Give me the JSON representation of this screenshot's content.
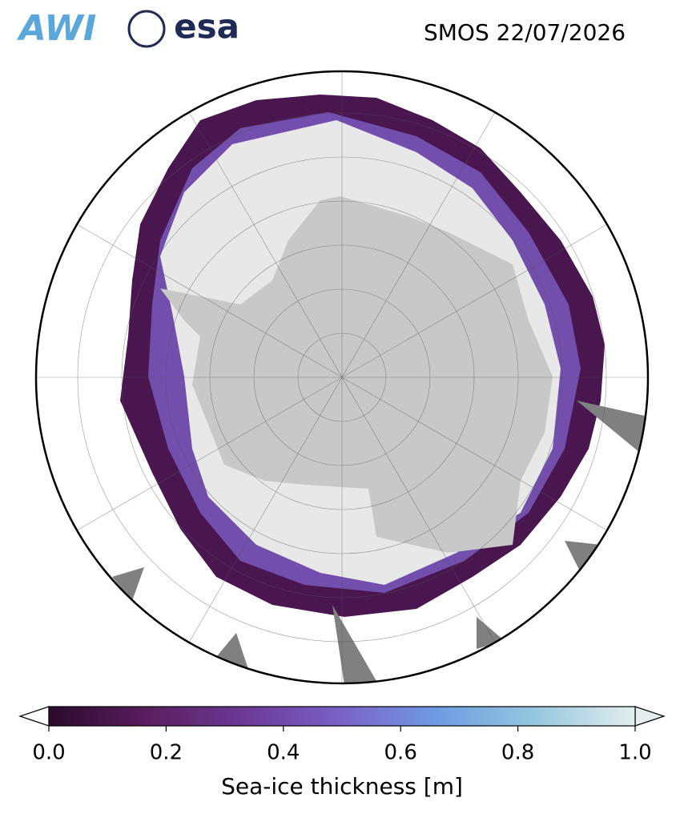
{
  "header": {
    "logos": [
      "AWI",
      "esa"
    ],
    "title": "SMOS 22/07/2026"
  },
  "colorbar": {
    "label": "Sea-ice thickness [m]",
    "lim": [
      0,
      1
    ],
    "ticks": [
      {
        "value": 0,
        "label": "0.0"
      },
      {
        "value": 0.2,
        "label": "0.2"
      },
      {
        "value": 0.4,
        "label": "0.4"
      },
      {
        "value": 0.6,
        "label": "0.6"
      },
      {
        "value": 0.8,
        "label": "0.8"
      },
      {
        "value": 1,
        "label": "1.0"
      }
    ],
    "colors": [
      "#2a0a2c",
      "#5a1d5e",
      "#6b3a96",
      "#7a62c8",
      "#6f9de2",
      "#97c8de",
      "#e4eeee"
    ]
  }
}
